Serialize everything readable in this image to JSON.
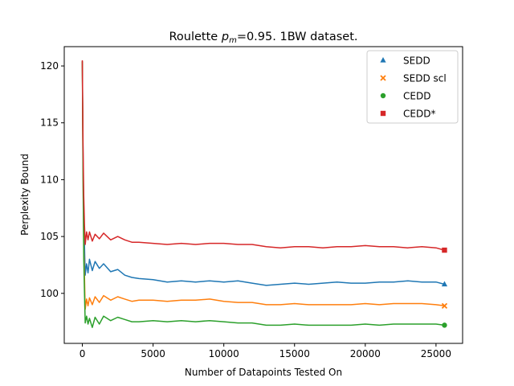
{
  "chart_data": {
    "type": "line",
    "title_main": "Roulette ",
    "title_math_base": "p",
    "title_math_sub": "m",
    "title_rest": "=0.95. 1BW dataset.",
    "xlabel": "Number of Datapoints Tested On",
    "ylabel": "Perplexity Bound",
    "xlim": [
      -1280,
      26880
    ],
    "ylim": [
      95.6,
      121.7
    ],
    "xticks": [
      0,
      5000,
      10000,
      15000,
      20000,
      25000
    ],
    "yticks": [
      100,
      105,
      110,
      115,
      120
    ],
    "legend_position": "top-right",
    "grid": false,
    "series": [
      {
        "name": "SEDD",
        "color": "#1f77b4",
        "marker": "triangle",
        "x": [
          0,
          50,
          100,
          150,
          200,
          300,
          400,
          500,
          700,
          900,
          1200,
          1500,
          2000,
          2500,
          3000,
          3500,
          4000,
          5000,
          6000,
          7000,
          8000,
          9000,
          10000,
          11000,
          12000,
          13000,
          14000,
          15000,
          16000,
          17000,
          18000,
          19000,
          20000,
          21000,
          22000,
          23000,
          24000,
          25000,
          25600
        ],
        "y": [
          120.4,
          112.0,
          106.5,
          104.2,
          101.6,
          102.6,
          101.8,
          103.0,
          102.0,
          102.8,
          102.2,
          102.6,
          101.9,
          102.1,
          101.6,
          101.4,
          101.3,
          101.2,
          101.0,
          101.1,
          101.0,
          101.1,
          101.0,
          101.1,
          100.9,
          100.7,
          100.8,
          100.9,
          100.8,
          100.9,
          101.0,
          100.9,
          100.9,
          101.0,
          101.0,
          101.1,
          101.0,
          101.0,
          100.8
        ]
      },
      {
        "name": "SEDD scl",
        "color": "#ff7f0e",
        "marker": "x",
        "x": [
          0,
          50,
          100,
          150,
          200,
          300,
          400,
          500,
          700,
          900,
          1200,
          1500,
          2000,
          2500,
          3000,
          3500,
          4000,
          5000,
          6000,
          7000,
          8000,
          9000,
          10000,
          11000,
          12000,
          13000,
          14000,
          15000,
          16000,
          17000,
          18000,
          19000,
          20000,
          21000,
          22000,
          23000,
          24000,
          25000,
          25600
        ],
        "y": [
          120.4,
          111.0,
          104.0,
          101.5,
          98.6,
          99.5,
          98.9,
          99.6,
          99.0,
          99.7,
          99.2,
          99.8,
          99.4,
          99.7,
          99.5,
          99.3,
          99.4,
          99.4,
          99.3,
          99.4,
          99.4,
          99.5,
          99.3,
          99.2,
          99.2,
          99.0,
          99.0,
          99.1,
          99.0,
          99.0,
          99.0,
          99.0,
          99.1,
          99.0,
          99.1,
          99.1,
          99.1,
          99.0,
          98.9
        ]
      },
      {
        "name": "CEDD",
        "color": "#2ca02c",
        "marker": "circle",
        "x": [
          0,
          50,
          100,
          150,
          200,
          300,
          400,
          500,
          700,
          900,
          1200,
          1500,
          2000,
          2500,
          3000,
          3500,
          4000,
          5000,
          6000,
          7000,
          8000,
          9000,
          10000,
          11000,
          12000,
          13000,
          14000,
          15000,
          16000,
          17000,
          18000,
          19000,
          20000,
          21000,
          22000,
          23000,
          24000,
          25000,
          25600
        ],
        "y": [
          120.4,
          110.0,
          103.0,
          100.0,
          97.4,
          98.0,
          97.3,
          97.8,
          97.0,
          97.9,
          97.3,
          98.0,
          97.6,
          97.9,
          97.7,
          97.5,
          97.5,
          97.6,
          97.5,
          97.6,
          97.5,
          97.6,
          97.5,
          97.4,
          97.4,
          97.2,
          97.2,
          97.3,
          97.2,
          97.2,
          97.2,
          97.2,
          97.3,
          97.2,
          97.3,
          97.3,
          97.3,
          97.3,
          97.2
        ]
      },
      {
        "name": "CEDD*",
        "color": "#d62728",
        "marker": "square",
        "x": [
          0,
          50,
          100,
          150,
          200,
          300,
          400,
          500,
          700,
          900,
          1200,
          1500,
          2000,
          2500,
          3000,
          3500,
          4000,
          5000,
          6000,
          7000,
          8000,
          9000,
          10000,
          11000,
          12000,
          13000,
          14000,
          15000,
          16000,
          17000,
          18000,
          19000,
          20000,
          21000,
          22000,
          23000,
          24000,
          25000,
          25600
        ],
        "y": [
          120.5,
          113.0,
          108.5,
          106.0,
          104.3,
          105.4,
          104.7,
          105.4,
          104.6,
          105.2,
          104.8,
          105.3,
          104.7,
          105.0,
          104.7,
          104.5,
          104.5,
          104.4,
          104.3,
          104.4,
          104.3,
          104.4,
          104.4,
          104.3,
          104.3,
          104.1,
          104.0,
          104.1,
          104.1,
          104.0,
          104.1,
          104.1,
          104.2,
          104.1,
          104.1,
          104.0,
          104.1,
          104.0,
          103.8
        ]
      }
    ]
  }
}
